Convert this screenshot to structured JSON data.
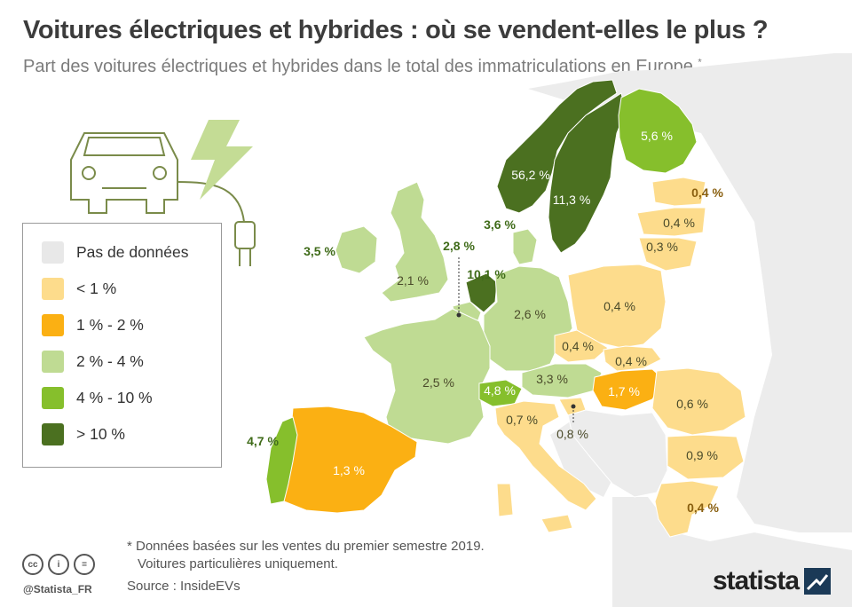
{
  "header": {
    "title": "Voitures électriques et hybrides : où se vendent-elles le plus ?",
    "subtitle": "Part des voitures électriques et hybrides dans le total des immatriculations en Europe",
    "subtitle_mark": "*"
  },
  "legend": {
    "items": [
      {
        "label": "Pas de données",
        "color": "#e8e8e8"
      },
      {
        "label": "< 1 %",
        "color": "#fddc8c"
      },
      {
        "label": "1 % - 2 %",
        "color": "#fbb013"
      },
      {
        "label": "2 % - 4 %",
        "color": "#bfdb93"
      },
      {
        "label": "4 % - 10 %",
        "color": "#86bf2c"
      },
      {
        "label": "> 10 %",
        "color": "#4b7020"
      }
    ]
  },
  "countries": [
    {
      "name": "Norvège",
      "value": "56,2 %"
    },
    {
      "name": "Suède",
      "value": "11,3 %"
    },
    {
      "name": "Finlande",
      "value": "5,6 %"
    },
    {
      "name": "Estonie",
      "value": "0,4 %"
    },
    {
      "name": "Lettonie",
      "value": "0,4 %"
    },
    {
      "name": "Lituanie",
      "value": "0,3 %"
    },
    {
      "name": "Danemark",
      "value": "3,6 %"
    },
    {
      "name": "Irlande",
      "value": "3,5 %"
    },
    {
      "name": "Royaume-Uni",
      "value": "2,1 %"
    },
    {
      "name": "Belgique",
      "value": "2,8 %"
    },
    {
      "name": "Pays-Bas",
      "value": "10,1 %"
    },
    {
      "name": "Allemagne",
      "value": "2,6 %"
    },
    {
      "name": "Pologne",
      "value": "0,4 %"
    },
    {
      "name": "Tchéquie",
      "value": "0,4 %"
    },
    {
      "name": "Slovaquie",
      "value": "0,4 %"
    },
    {
      "name": "France",
      "value": "2,5 %"
    },
    {
      "name": "Suisse",
      "value": "4,8 %"
    },
    {
      "name": "Autriche",
      "value": "3,3 %"
    },
    {
      "name": "Hongrie",
      "value": "1,7 %"
    },
    {
      "name": "Roumanie",
      "value": "0,6 %"
    },
    {
      "name": "Italie",
      "value": "0,7 %"
    },
    {
      "name": "Slovénie",
      "value": "0,8 %"
    },
    {
      "name": "Bulgarie",
      "value": "0,9 %"
    },
    {
      "name": "Portugal",
      "value": "4,7 %"
    },
    {
      "name": "Espagne",
      "value": "1,3 %"
    },
    {
      "name": "Grèce",
      "value": "0,4 %"
    }
  ],
  "footer": {
    "note_line1": "* Données basées sur les ventes du premier semestre 2019.",
    "note_line2": "Voitures particulières uniquement.",
    "source": "Source : InsideEVs",
    "handle": "@Statista_FR",
    "brand": "statista",
    "cc_icons": [
      "cc-icon",
      "attribution-icon",
      "no-derivatives-icon"
    ]
  }
}
